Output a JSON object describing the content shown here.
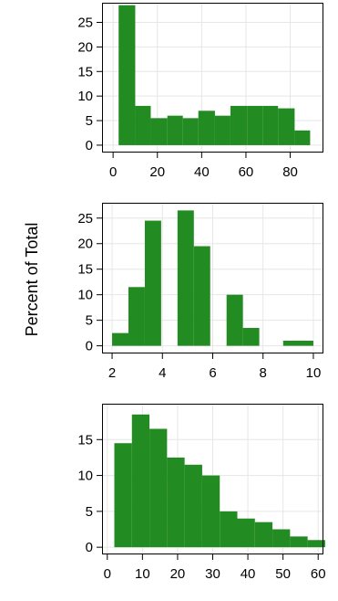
{
  "ylabel": "Percent of Total",
  "bar_color": "#228b22",
  "grid_color": "#e6e6e6",
  "chart_data": [
    {
      "type": "bar",
      "grid": true,
      "xlim": [
        -5,
        95
      ],
      "ylim": [
        -1.5,
        29
      ],
      "xticks": [
        0,
        20,
        40,
        60,
        80
      ],
      "yticks": [
        0,
        5,
        10,
        15,
        20,
        25
      ],
      "bins": [
        {
          "x0": 2.5,
          "x1": 10,
          "value": 28.5
        },
        {
          "x0": 10,
          "x1": 17,
          "value": 8
        },
        {
          "x0": 17,
          "x1": 24.5,
          "value": 5.5
        },
        {
          "x0": 24.5,
          "x1": 31.5,
          "value": 6
        },
        {
          "x0": 31.5,
          "x1": 38.5,
          "value": 5.5
        },
        {
          "x0": 38.5,
          "x1": 46,
          "value": 7
        },
        {
          "x0": 46,
          "x1": 53,
          "value": 6
        },
        {
          "x0": 53,
          "x1": 60.5,
          "value": 8
        },
        {
          "x0": 60.5,
          "x1": 67.5,
          "value": 8
        },
        {
          "x0": 67.5,
          "x1": 74.5,
          "value": 8
        },
        {
          "x0": 74.5,
          "x1": 82,
          "value": 7.5
        },
        {
          "x0": 82,
          "x1": 89,
          "value": 3
        }
      ]
    },
    {
      "type": "bar",
      "grid": true,
      "xlim": [
        1.6,
        10.4
      ],
      "ylim": [
        -1.5,
        28
      ],
      "xticks": [
        2,
        4,
        6,
        8,
        10
      ],
      "yticks": [
        0,
        5,
        10,
        15,
        20,
        25
      ],
      "bins": [
        {
          "x0": 2,
          "x1": 2.65,
          "value": 2.5
        },
        {
          "x0": 2.65,
          "x1": 3.3,
          "value": 11.5
        },
        {
          "x0": 3.3,
          "x1": 3.95,
          "value": 24.5
        },
        {
          "x0": 4.6,
          "x1": 5.25,
          "value": 26.5
        },
        {
          "x0": 5.25,
          "x1": 5.9,
          "value": 19.5
        },
        {
          "x0": 6.55,
          "x1": 7.2,
          "value": 10
        },
        {
          "x0": 7.2,
          "x1": 7.85,
          "value": 3.5
        },
        {
          "x0": 8.8,
          "x1": 10,
          "value": 1
        }
      ]
    },
    {
      "type": "bar",
      "grid": true,
      "xlim": [
        -1.5,
        61.5
      ],
      "ylim": [
        -1,
        20
      ],
      "xticks": [
        0,
        10,
        20,
        30,
        40,
        50,
        60
      ],
      "yticks": [
        0,
        5,
        10,
        15
      ],
      "bins": [
        {
          "x0": 2,
          "x1": 7,
          "value": 14.5
        },
        {
          "x0": 7,
          "x1": 12,
          "value": 18.5
        },
        {
          "x0": 12,
          "x1": 17,
          "value": 16.5
        },
        {
          "x0": 17,
          "x1": 22,
          "value": 12.5
        },
        {
          "x0": 22,
          "x1": 27,
          "value": 11.5
        },
        {
          "x0": 27,
          "x1": 32,
          "value": 10
        },
        {
          "x0": 32,
          "x1": 37,
          "value": 5
        },
        {
          "x0": 37,
          "x1": 42,
          "value": 4
        },
        {
          "x0": 42,
          "x1": 47,
          "value": 3.5
        },
        {
          "x0": 47,
          "x1": 52,
          "value": 2.5
        },
        {
          "x0": 52,
          "x1": 57,
          "value": 1.5
        },
        {
          "x0": 57,
          "x1": 62,
          "value": 1
        }
      ]
    }
  ]
}
